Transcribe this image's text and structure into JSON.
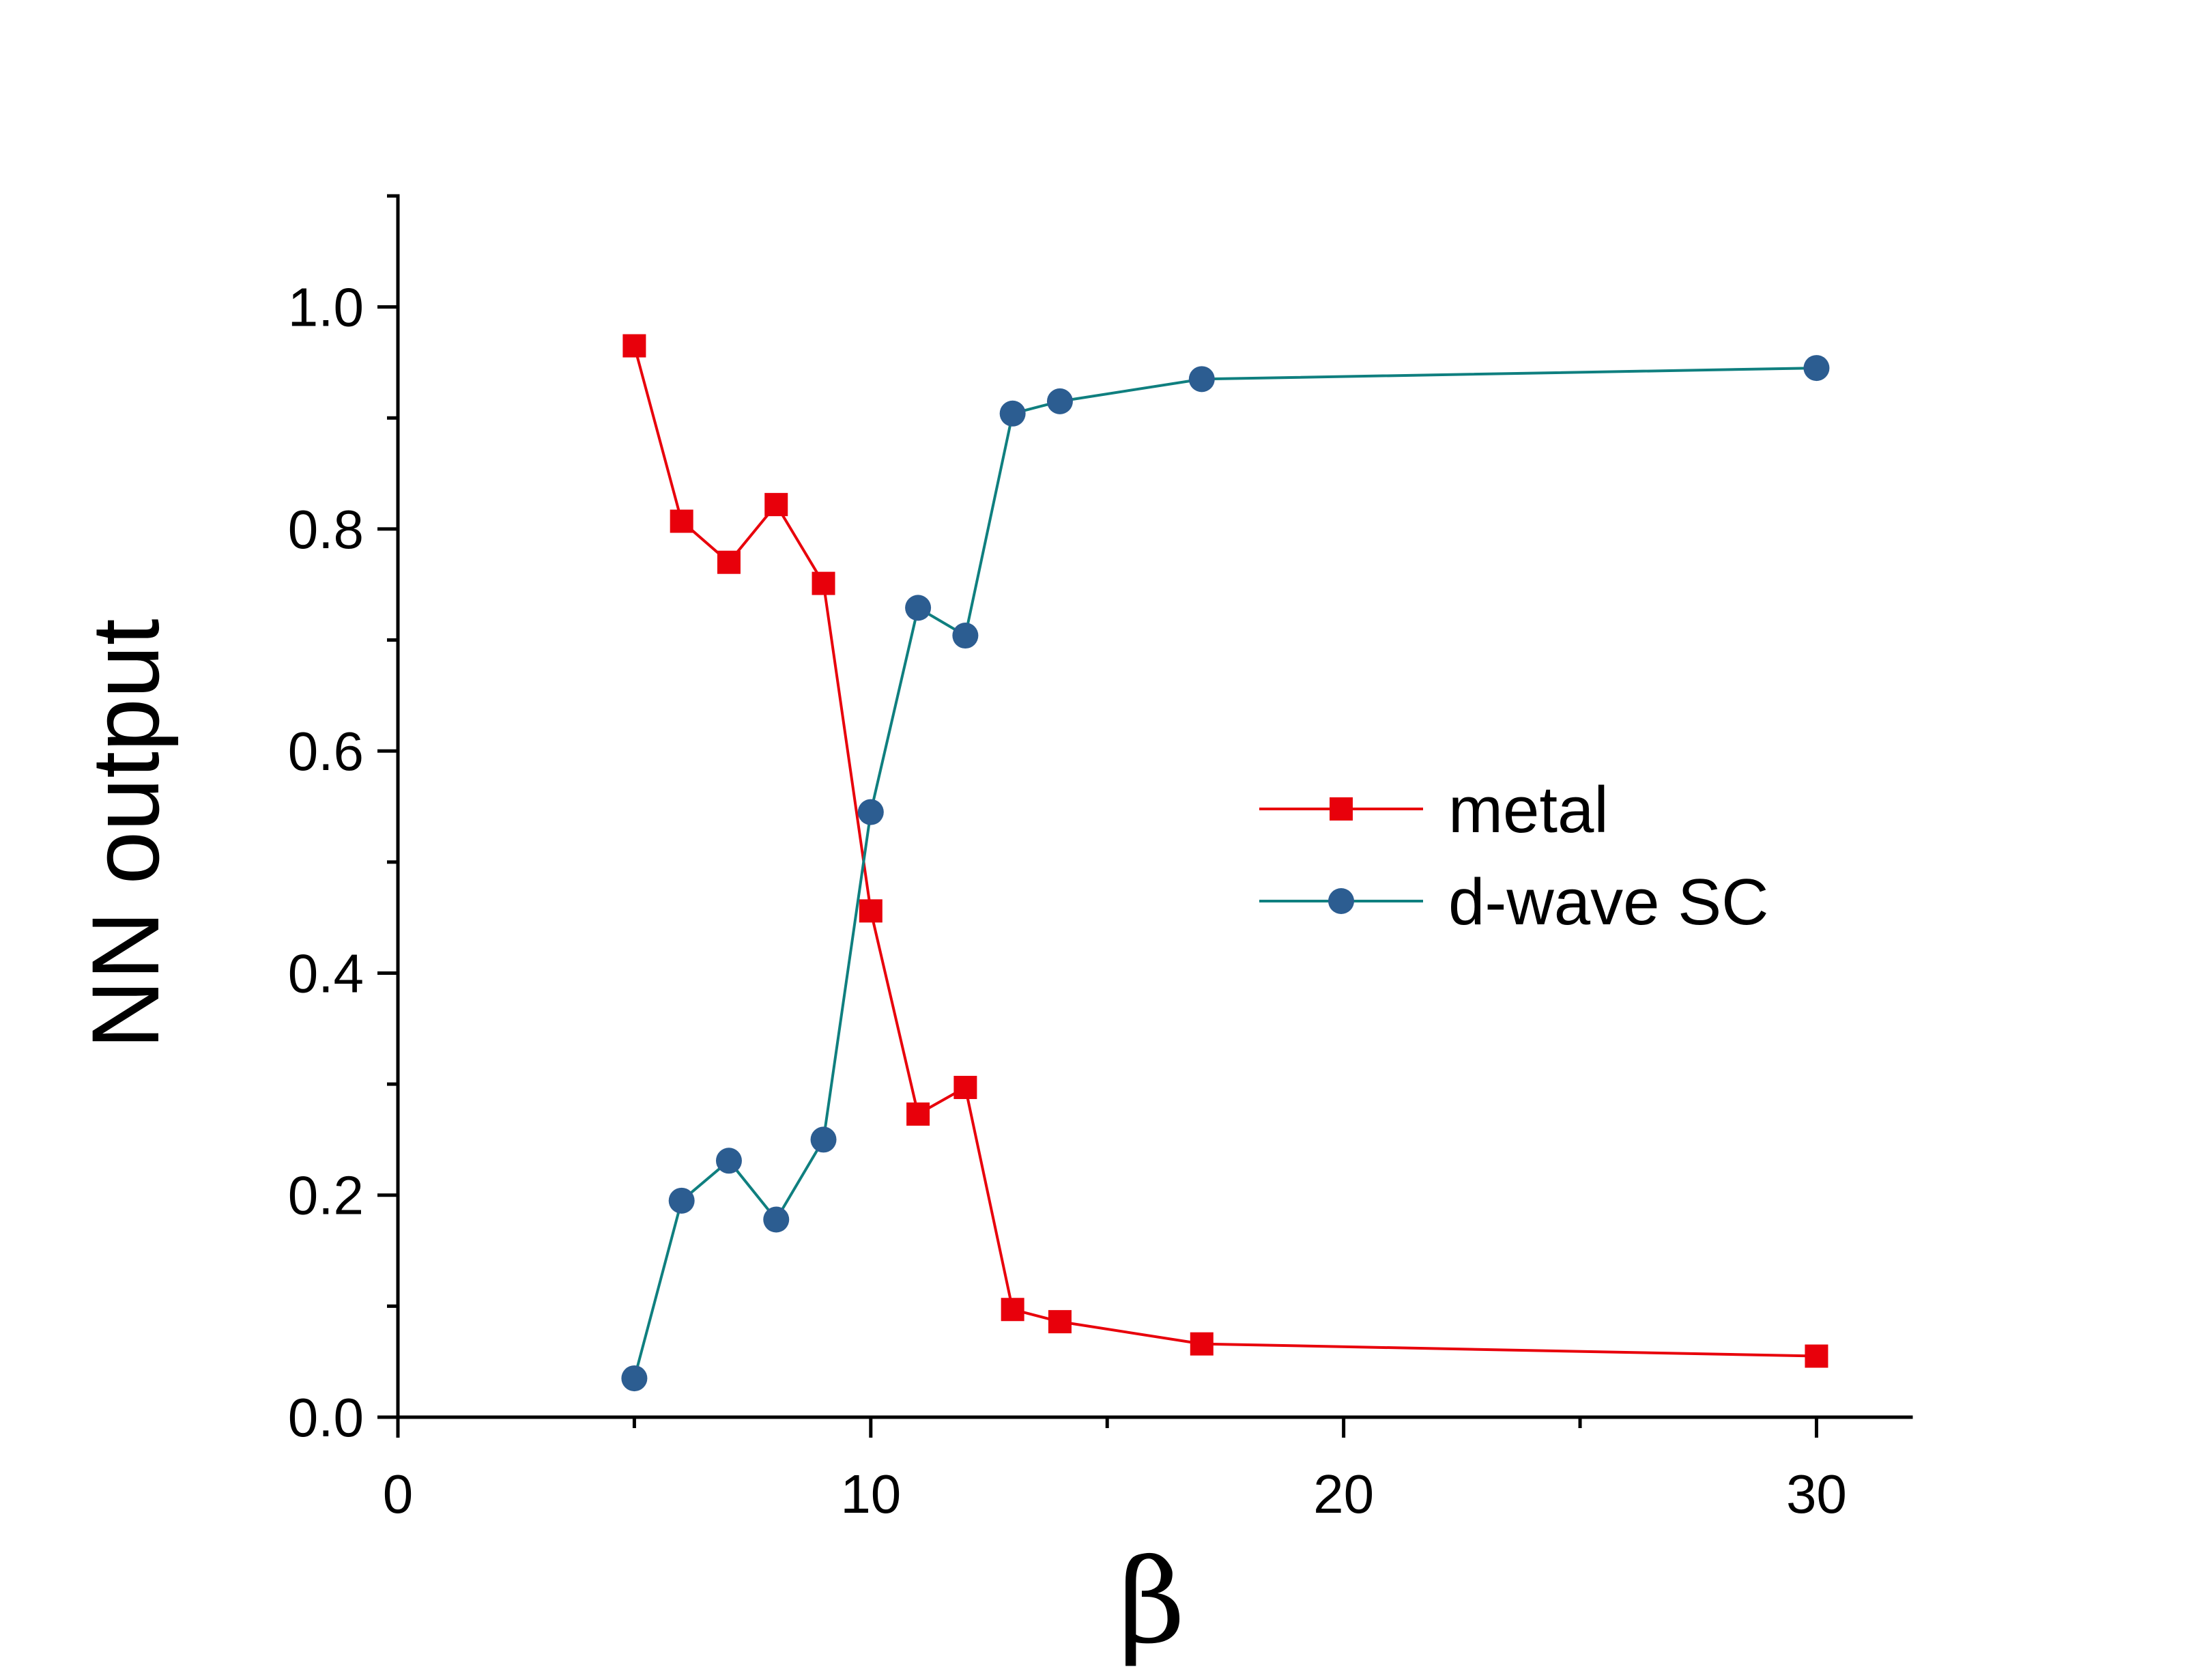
{
  "chart_data": {
    "type": "line",
    "title": "",
    "xlabel": "β",
    "ylabel": "NN output",
    "xlim": [
      0,
      32
    ],
    "ylim": [
      0,
      1.1
    ],
    "x_ticks": [
      0,
      10,
      20,
      30
    ],
    "x_tick_labels": [
      "0",
      "10",
      "20",
      "30"
    ],
    "x_minor_ticks": [
      5,
      15,
      25
    ],
    "y_ticks": [
      0.0,
      0.2,
      0.4,
      0.6,
      0.8,
      1.0
    ],
    "y_tick_labels": [
      "0.0",
      "0.2",
      "0.4",
      "0.6",
      "0.8",
      "1.0"
    ],
    "y_minor_ticks": [
      0.1,
      0.3,
      0.5,
      0.7,
      0.9,
      1.1
    ],
    "grid": false,
    "legend_position": "right-center",
    "series": [
      {
        "name": "metal",
        "color": "#e8000b",
        "marker": "square",
        "x": [
          5,
          6,
          7,
          8,
          9,
          10,
          11,
          12,
          13,
          14,
          17,
          30
        ],
        "y": [
          0.965,
          0.807,
          0.77,
          0.822,
          0.751,
          0.456,
          0.273,
          0.297,
          0.097,
          0.086,
          0.066,
          0.055
        ]
      },
      {
        "name": "d-wave SC",
        "color": "#0f7f7f",
        "marker_color": "#2c5d91",
        "marker": "circle",
        "x": [
          5,
          6,
          7,
          8,
          9,
          10,
          11,
          12,
          13,
          14,
          17,
          30
        ],
        "y": [
          0.035,
          0.195,
          0.231,
          0.178,
          0.25,
          0.545,
          0.729,
          0.704,
          0.904,
          0.915,
          0.935,
          0.945
        ]
      }
    ]
  }
}
